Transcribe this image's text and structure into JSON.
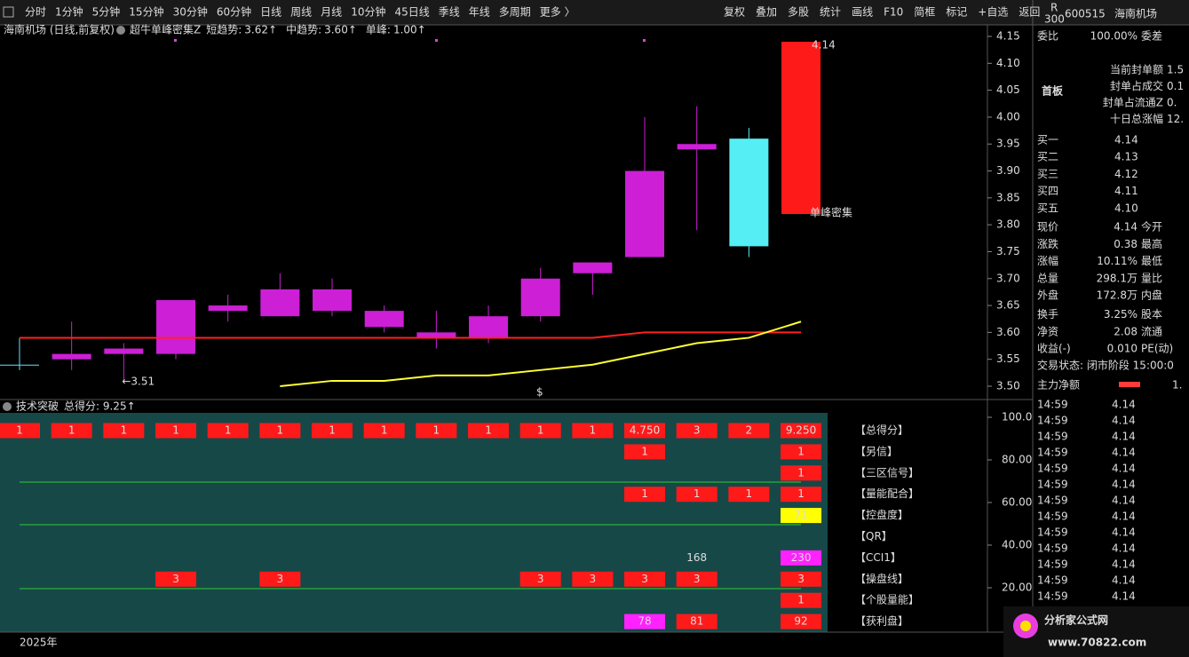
{
  "toolbar": {
    "left": [
      "分时",
      "1分钟",
      "5分钟",
      "15分钟",
      "30分钟",
      "60分钟",
      "日线",
      "周线",
      "月线",
      "10分钟",
      "45日线",
      "季线",
      "年线",
      "多周期",
      "更多 〉"
    ],
    "right": [
      "复权",
      "叠加",
      "多股",
      "统计",
      "画线",
      "F10",
      "简框",
      "标记",
      "+自选",
      "返回"
    ]
  },
  "chart": {
    "title": "海南机场 (日线,前复权)",
    "indicator": "超牛单峰密集Z",
    "legend": [
      {
        "label": "短趋势:",
        "value": "3.62↑",
        "color": "#ffff33"
      },
      {
        "label": "中趋势:",
        "value": "3.60↑",
        "color": "#ff3333"
      },
      {
        "label": "单峰:",
        "value": "1.00↑",
        "color": "#e040e0"
      }
    ],
    "price_ticks": [
      {
        "value": 4.15,
        "label": "4.15"
      },
      {
        "value": 4.1,
        "label": "4.10"
      },
      {
        "value": 4.05,
        "label": "4.05"
      },
      {
        "value": 4.0,
        "label": "4.00"
      },
      {
        "value": 3.95,
        "label": "3.95"
      },
      {
        "value": 3.9,
        "label": "3.90"
      },
      {
        "value": 3.85,
        "label": "3.85"
      },
      {
        "value": 3.8,
        "label": "3.80"
      },
      {
        "value": 3.75,
        "label": "3.75"
      },
      {
        "value": 3.7,
        "label": "3.70"
      },
      {
        "value": 3.65,
        "label": "3.65"
      },
      {
        "value": 3.6,
        "label": "3.60"
      },
      {
        "value": 3.55,
        "label": "3.55"
      },
      {
        "value": 3.5,
        "label": "3.50"
      }
    ],
    "candles": [
      {
        "open": 3.54,
        "high": 3.59,
        "low": 3.53,
        "close": 3.54,
        "color": "#66e0ff"
      },
      {
        "open": 3.56,
        "high": 3.62,
        "low": 3.53,
        "close": 3.55,
        "color": "#cc1fd6"
      },
      {
        "open": 3.56,
        "high": 3.58,
        "low": 3.51,
        "close": 3.57,
        "color": "#cc1fd6"
      },
      {
        "open": 3.56,
        "high": 3.66,
        "low": 3.55,
        "close": 3.66,
        "color": "#cc1fd6"
      },
      {
        "open": 3.64,
        "high": 3.67,
        "low": 3.62,
        "close": 3.65,
        "color": "#cc1fd6"
      },
      {
        "open": 3.63,
        "high": 3.71,
        "low": 3.63,
        "close": 3.68,
        "color": "#cc1fd6"
      },
      {
        "open": 3.64,
        "high": 3.7,
        "low": 3.63,
        "close": 3.68,
        "color": "#cc1fd6"
      },
      {
        "open": 3.61,
        "high": 3.65,
        "low": 3.6,
        "close": 3.64,
        "color": "#cc1fd6"
      },
      {
        "open": 3.59,
        "high": 3.64,
        "low": 3.57,
        "close": 3.6,
        "color": "#cc1fd6"
      },
      {
        "open": 3.59,
        "high": 3.65,
        "low": 3.58,
        "close": 3.63,
        "color": "#cc1fd6"
      },
      {
        "open": 3.63,
        "high": 3.72,
        "low": 3.62,
        "close": 3.7,
        "color": "#cc1fd6"
      },
      {
        "open": 3.71,
        "high": 3.73,
        "low": 3.67,
        "close": 3.73,
        "color": "#cc1fd6"
      },
      {
        "open": 3.74,
        "high": 4.0,
        "low": 3.74,
        "close": 3.9,
        "color": "#cc1fd6"
      },
      {
        "open": 3.94,
        "high": 4.02,
        "low": 3.79,
        "close": 3.95,
        "color": "#cc1fd6"
      },
      {
        "open": 3.96,
        "high": 3.98,
        "low": 3.74,
        "close": 3.76,
        "color": "#55eef5"
      },
      {
        "open": 3.82,
        "high": 4.14,
        "low": 3.82,
        "close": 4.14,
        "color": "#ff1a1a"
      }
    ],
    "ma_mid": [
      3.59,
      3.59,
      3.59,
      3.59,
      3.59,
      3.59,
      3.59,
      3.59,
      3.59,
      3.59,
      3.59,
      3.59,
      3.6,
      3.6,
      3.6,
      3.6
    ],
    "ma_short": [
      null,
      null,
      null,
      null,
      null,
      3.5,
      3.51,
      3.51,
      3.52,
      3.52,
      3.53,
      3.54,
      3.56,
      3.58,
      3.59,
      3.62
    ],
    "high_label": "4.14",
    "low_label": "←3.51",
    "signal": "单峰密集",
    "marker": "$"
  },
  "panel": {
    "title": "技术突破",
    "score": "总得分: 9.25↑",
    "axis": [
      {
        "value": 100,
        "label": "100.0"
      },
      {
        "value": 80,
        "label": "80.00"
      },
      {
        "value": 60,
        "label": "60.00"
      },
      {
        "value": 40,
        "label": "40.00"
      },
      {
        "value": 20,
        "label": "20.00"
      }
    ],
    "rows": [
      {
        "label": "【总得分】",
        "cells": [
          {
            "text": "1",
            "color": "#ff1a1a"
          },
          {
            "text": "1",
            "color": "#ff1a1a"
          },
          {
            "text": "1",
            "color": "#ff1a1a"
          },
          {
            "text": "1",
            "color": "#ff1a1a"
          },
          {
            "text": "1",
            "color": "#ff1a1a"
          },
          {
            "text": "1",
            "color": "#ff1a1a"
          },
          {
            "text": "1",
            "color": "#ff1a1a"
          },
          {
            "text": "1",
            "color": "#ff1a1a"
          },
          {
            "text": "1",
            "color": "#ff1a1a"
          },
          {
            "text": "1",
            "color": "#ff1a1a"
          },
          {
            "text": "1",
            "color": "#ff1a1a"
          },
          {
            "text": "1",
            "color": "#ff1a1a"
          },
          {
            "text": "4.750",
            "color": "#ff1a1a"
          },
          {
            "text": "3",
            "color": "#ff1a1a"
          },
          {
            "text": "2",
            "color": "#ff1a1a"
          },
          {
            "text": "9.250",
            "color": "#ff1a1a"
          }
        ]
      },
      {
        "label": "【另信】",
        "cells": [
          null,
          null,
          null,
          null,
          null,
          null,
          null,
          null,
          null,
          null,
          null,
          null,
          {
            "text": "1",
            "color": "#ff1a1a"
          },
          null,
          null,
          {
            "text": "1",
            "color": "#ff1a1a"
          }
        ]
      },
      {
        "label": "【三区信号】",
        "cells": [
          null,
          null,
          null,
          null,
          null,
          null,
          null,
          null,
          null,
          null,
          null,
          null,
          null,
          null,
          null,
          {
            "text": "1",
            "color": "#ff1a1a"
          }
        ]
      },
      {
        "label": "【量能配合】",
        "cells": [
          null,
          null,
          null,
          null,
          null,
          null,
          null,
          null,
          null,
          null,
          null,
          null,
          {
            "text": "1",
            "color": "#ff1a1a"
          },
          {
            "text": "1",
            "color": "#ff1a1a"
          },
          {
            "text": "1",
            "color": "#ff1a1a"
          },
          {
            "text": "1",
            "color": "#ff1a1a"
          }
        ]
      },
      {
        "label": "【控盘度】",
        "cells": [
          null,
          null,
          null,
          null,
          null,
          null,
          null,
          null,
          null,
          null,
          null,
          null,
          null,
          null,
          null,
          {
            "text": "71",
            "color": "#ffff00"
          }
        ]
      },
      {
        "label": "【QR】",
        "cells": [
          null,
          null,
          null,
          null,
          null,
          null,
          null,
          null,
          null,
          null,
          null,
          null,
          null,
          null,
          null,
          null
        ]
      },
      {
        "label": "【CCI1】",
        "cells": [
          null,
          null,
          null,
          null,
          null,
          null,
          null,
          null,
          null,
          null,
          null,
          null,
          null,
          {
            "text": "168",
            "color": "none"
          },
          null,
          {
            "text": "230",
            "color": "#ff22ff"
          }
        ]
      },
      {
        "label": "【操盘线】",
        "cells": [
          null,
          null,
          null,
          {
            "text": "3",
            "color": "#ff1a1a"
          },
          null,
          {
            "text": "3",
            "color": "#ff1a1a"
          },
          null,
          null,
          null,
          null,
          {
            "text": "3",
            "color": "#ff1a1a"
          },
          {
            "text": "3",
            "color": "#ff1a1a"
          },
          {
            "text": "3",
            "color": "#ff1a1a"
          },
          {
            "text": "3",
            "color": "#ff1a1a"
          },
          null,
          {
            "text": "3",
            "color": "#ff1a1a"
          }
        ]
      },
      {
        "label": "【个股量能】",
        "cells": [
          null,
          null,
          null,
          null,
          null,
          null,
          null,
          null,
          null,
          null,
          null,
          null,
          null,
          null,
          null,
          {
            "text": "1",
            "color": "#ff1a1a"
          }
        ]
      },
      {
        "label": "【获利盘】",
        "cells": [
          null,
          null,
          null,
          null,
          null,
          null,
          null,
          null,
          null,
          null,
          null,
          null,
          {
            "text": "78",
            "color": "#ff22ff"
          },
          {
            "text": "81",
            "color": "#ff1a1a"
          },
          null,
          {
            "text": "92",
            "color": "#ff1a1a"
          }
        ]
      }
    ]
  },
  "time_label": "2025年",
  "quote": {
    "badge_top": "R",
    "badge_bottom": "300",
    "code": "600515",
    "name": "海南机场",
    "ratio": [
      "委比",
      "100.00%",
      "委差"
    ],
    "board": "首板",
    "seal": [
      [
        "当前封单额",
        "1.5"
      ],
      [
        "封单占成交",
        "0.1"
      ],
      [
        "封单占流通Z",
        "0."
      ],
      [
        "十日总涨幅",
        "12."
      ]
    ],
    "bids": [
      [
        "买一",
        "4.14"
      ],
      [
        "买二",
        "4.13"
      ],
      [
        "买三",
        "4.12"
      ],
      [
        "买四",
        "4.11"
      ],
      [
        "买五",
        "4.10"
      ]
    ],
    "stats": [
      [
        "现价",
        "4.14",
        "今开"
      ],
      [
        "涨跌",
        "0.38",
        "最高"
      ],
      [
        "涨幅",
        "10.11%",
        "最低"
      ],
      [
        "总量",
        "298.1万",
        "量比"
      ],
      [
        "外盘",
        "172.8万",
        "内盘"
      ],
      [
        "换手",
        "3.25%",
        "股本"
      ],
      [
        "净资",
        "2.08",
        "流通"
      ],
      [
        "收益(-)",
        "0.010",
        "PE(动)"
      ]
    ],
    "status": "交易状态: 闭市阶段 15:00:0",
    "net": [
      "主力净额",
      "1."
    ],
    "ticks": [
      [
        "14:59",
        "4.14"
      ],
      [
        "14:59",
        "4.14"
      ],
      [
        "14:59",
        "4.14"
      ],
      [
        "14:59",
        "4.14"
      ],
      [
        "14:59",
        "4.14"
      ],
      [
        "14:59",
        "4.14"
      ],
      [
        "14:59",
        "4.14"
      ],
      [
        "14:59",
        "4.14"
      ],
      [
        "14:59",
        "4.14"
      ],
      [
        "14:59",
        "4.14"
      ],
      [
        "14:59",
        "4.14"
      ],
      [
        "14:59",
        "4.14"
      ],
      [
        "14:59",
        "4.14"
      ]
    ]
  },
  "logo": {
    "name": "分析家公式网",
    "url": "www.70822.com"
  }
}
